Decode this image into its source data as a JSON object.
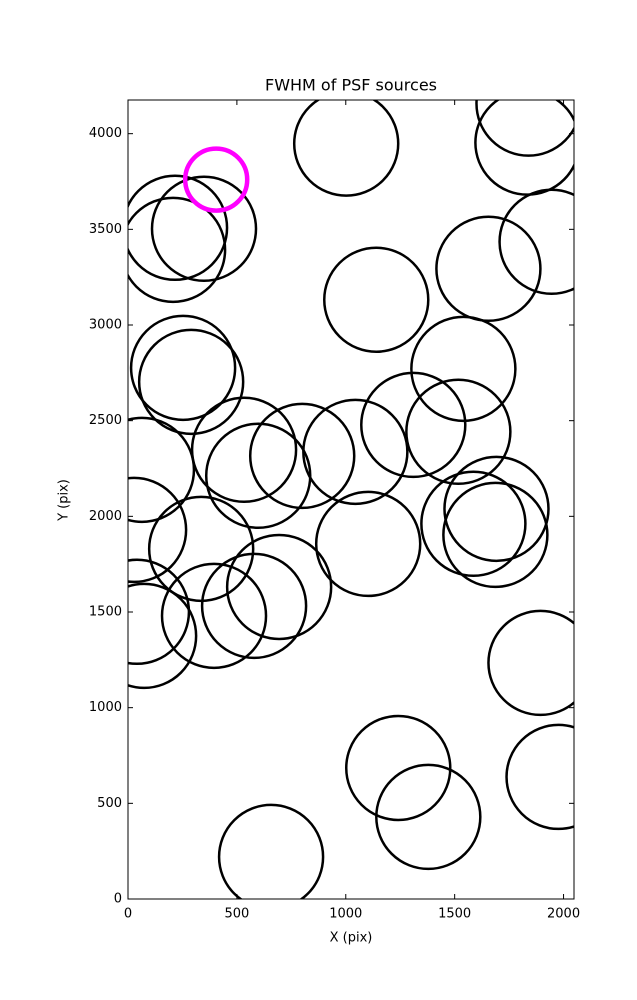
{
  "chart_data": {
    "type": "scatter",
    "title": "FWHM of PSF sources",
    "x_label": "X (pix)",
    "y_label": "Y (pix)",
    "xlim": [
      0,
      2048
    ],
    "ylim": [
      0,
      4176
    ],
    "xticks": [
      0,
      500,
      1000,
      1500,
      2000
    ],
    "yticks": [
      0,
      500,
      1000,
      1500,
      2000,
      2500,
      3000,
      3500,
      4000
    ],
    "grid": false,
    "series": [
      {
        "color": "#000000",
        "x": [
          1002,
          1839,
          1834,
          1945,
          1655,
          1140,
          1540,
          1310,
          1517,
          1044,
          800,
          533,
          598,
          64,
          28,
          216,
          207,
          349,
          253,
          290,
          336,
          41,
          74,
          395,
          579,
          694,
          1103,
          1586,
          1692,
          1687,
          1894,
          1977,
          1241,
          1379,
          657
        ],
        "y": [
          3948,
          4157,
          3953,
          3435,
          3294,
          3132,
          2771,
          2478,
          2442,
          2337,
          2316,
          2348,
          2212,
          2243,
          1929,
          3508,
          3393,
          3503,
          2776,
          2703,
          1830,
          1501,
          1375,
          1480,
          1532,
          1631,
          1856,
          1961,
          2039,
          1903,
          1234,
          638,
          685,
          429,
          220
        ]
      },
      {
        "color": "#ff00ff",
        "x": [
          405
        ],
        "y": [
          3760
        ]
      }
    ]
  }
}
